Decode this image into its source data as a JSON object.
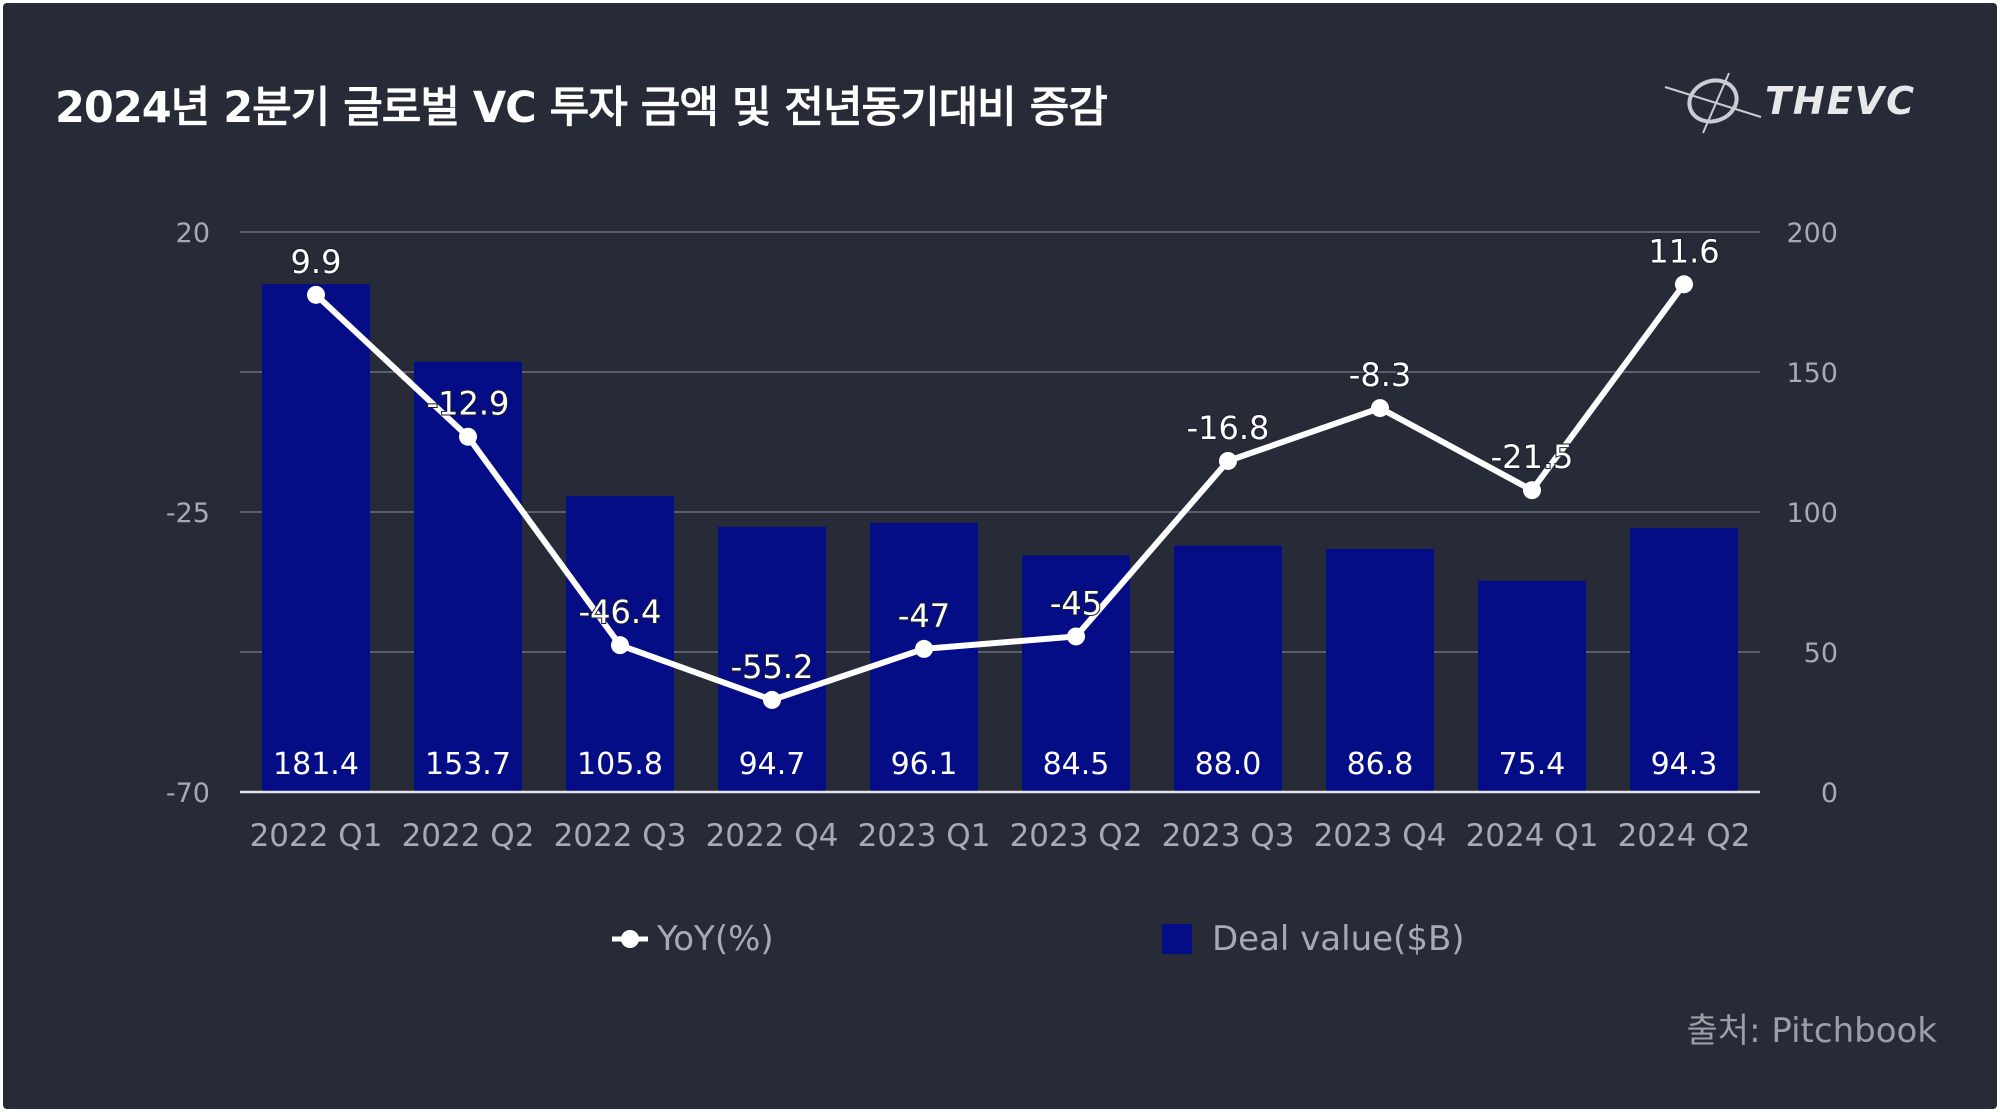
{
  "title": "2024년 2분기 글로벌 VC 투자 금액 및 전년동기대비 증감",
  "brand": "THEVC",
  "source": "출처: Pitchbook",
  "colors": {
    "background": "#272b37",
    "bar": "#040c86",
    "line": "#ffffff",
    "grid": "#6c7080",
    "axis_text": "#a7aab2"
  },
  "legend": {
    "line_label": "YoY(%)",
    "bar_label": "Deal value($B)"
  },
  "chart_data": {
    "type": "bar",
    "categories": [
      "2022 Q1",
      "2022 Q2",
      "2022 Q3",
      "2022 Q4",
      "2023 Q1",
      "2023 Q2",
      "2023 Q3",
      "2023 Q4",
      "2024 Q1",
      "2024 Q2"
    ],
    "series": [
      {
        "name": "Deal value($B)",
        "type": "bar",
        "axis": "right",
        "values": [
          181.4,
          153.7,
          105.8,
          94.7,
          96.1,
          84.5,
          88.0,
          86.8,
          75.4,
          94.3
        ],
        "labels": [
          "181.4",
          "153.7",
          "105.8",
          "94.7",
          "96.1",
          "84.5",
          "88.0",
          "86.8",
          "75.4",
          "94.3"
        ]
      },
      {
        "name": "YoY(%)",
        "type": "line",
        "axis": "left",
        "values": [
          9.9,
          -12.9,
          -46.4,
          -55.2,
          -47,
          -45,
          -16.8,
          -8.3,
          -21.5,
          11.6
        ],
        "labels": [
          "9.9",
          "-12.9",
          "-46.4",
          "-55.2",
          "-47",
          "-45",
          "-16.8",
          "-8.3",
          "-21.5",
          "11.6"
        ]
      }
    ],
    "y_left": {
      "range": [
        -70,
        20
      ],
      "ticks": [
        "20",
        "-25",
        "-70"
      ]
    },
    "y_right": {
      "range": [
        0,
        200
      ],
      "ticks": [
        "200",
        "150",
        "100",
        "50",
        "0"
      ]
    },
    "grid": true,
    "legend_position": "bottom"
  }
}
